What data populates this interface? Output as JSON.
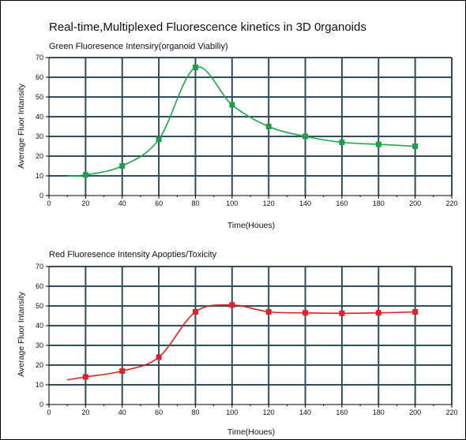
{
  "title": "Real-time,Multiplexed Fluorescence kinetics in 3D 0rganoids",
  "chart_data": [
    {
      "type": "line",
      "subtitle": "Green Fluoresence Intensiry(organoid Viabiliy)",
      "xlabel": "Time(Houes)",
      "ylabel": "Average Fluor Intansity",
      "xlim": [
        0,
        220
      ],
      "ylim": [
        0,
        70
      ],
      "xticks": [
        0,
        20,
        40,
        60,
        80,
        100,
        120,
        140,
        160,
        180,
        200,
        220
      ],
      "yticks": [
        0,
        10,
        20,
        30,
        40,
        50,
        60,
        70
      ],
      "grid": true,
      "color": "#1aa84a",
      "marker_color": "#1e9e48",
      "x": [
        20,
        40,
        60,
        80,
        100,
        120,
        140,
        160,
        180,
        200
      ],
      "y": [
        10.5,
        15,
        28.5,
        65,
        46,
        35,
        30,
        27,
        26,
        25
      ],
      "curve_start": [
        10,
        10
      ]
    },
    {
      "type": "line",
      "subtitle": "Red Fluoresence Intensity Apopties/Toxicity",
      "xlabel": "Time(Houes)",
      "ylabel": "Average Fluor Intansity",
      "xlim": [
        0,
        220
      ],
      "ylim": [
        0,
        70
      ],
      "xticks": [
        0,
        20,
        40,
        60,
        80,
        100,
        120,
        140,
        160,
        180,
        200,
        220
      ],
      "yticks": [
        0,
        10,
        20,
        30,
        40,
        50,
        60,
        70
      ],
      "grid": true,
      "color": "#e02020",
      "marker_color": "#e0202a",
      "x": [
        20,
        40,
        60,
        80,
        100,
        120,
        140,
        160,
        180,
        200
      ],
      "y": [
        14,
        17,
        24,
        47,
        50.5,
        47,
        46.5,
        46.3,
        46.5,
        47
      ],
      "curve_start": [
        10,
        12.5
      ]
    }
  ]
}
